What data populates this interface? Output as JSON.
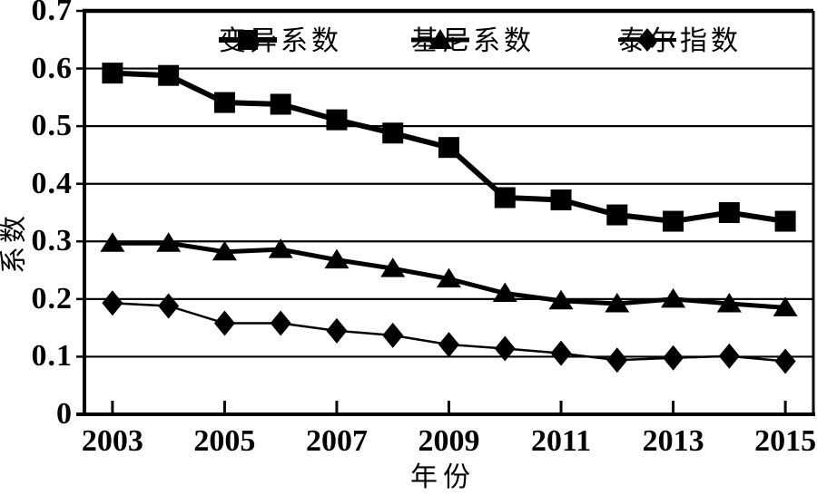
{
  "figure": {
    "background": "#ffffff",
    "ink": "#000000"
  },
  "chart_data": {
    "type": "line",
    "title": "",
    "xlabel": "年份",
    "ylabel": "系数",
    "x": [
      2003,
      2004,
      2005,
      2006,
      2007,
      2008,
      2009,
      2010,
      2011,
      2012,
      2013,
      2014,
      2015
    ],
    "x_tick_labels": [
      "2003",
      "2005",
      "2007",
      "2009",
      "2011",
      "2013",
      "2015"
    ],
    "x_tick_indices": [
      0,
      2,
      4,
      6,
      8,
      10,
      12
    ],
    "y_tick_labels": [
      "0.7",
      "0.6",
      "0.5",
      "0.4",
      "0.3",
      "0.2",
      "0.1",
      "0"
    ],
    "y_tick_values": [
      0.7,
      0.6,
      0.5,
      0.4,
      0.3,
      0.2,
      0.1,
      0
    ],
    "ylim": [
      0,
      0.7
    ],
    "grid": "horizontal",
    "legend_position": "top-inside",
    "series": [
      {
        "id": "cv",
        "name": "变异系数",
        "marker": "square",
        "line_width": 6,
        "values": [
          0.592,
          0.588,
          0.541,
          0.538,
          0.511,
          0.488,
          0.463,
          0.376,
          0.372,
          0.346,
          0.335,
          0.35,
          0.335
        ]
      },
      {
        "id": "gini",
        "name": "基尼系数",
        "marker": "triangle",
        "line_width": 5,
        "values": [
          0.297,
          0.297,
          0.282,
          0.286,
          0.268,
          0.253,
          0.235,
          0.21,
          0.197,
          0.192,
          0.2,
          0.192,
          0.185
        ]
      },
      {
        "id": "theil",
        "name": "泰尔指数",
        "marker": "diamond",
        "line_width": 2.5,
        "values": [
          0.193,
          0.188,
          0.158,
          0.158,
          0.145,
          0.137,
          0.121,
          0.114,
          0.106,
          0.094,
          0.098,
          0.101,
          0.092
        ]
      }
    ]
  }
}
